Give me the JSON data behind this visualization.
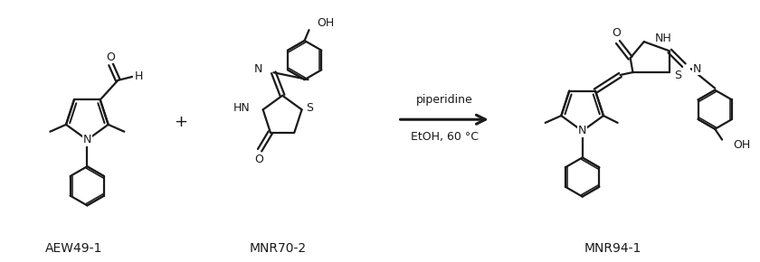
{
  "background_color": "#ffffff",
  "fig_width": 8.4,
  "fig_height": 2.9,
  "dpi": 100,
  "label_AEW": "AEW49-1",
  "label_MNR70": "MNR70-2",
  "label_MNR94": "MNR94-1",
  "reagent_line1": "piperidine",
  "reagent_line2": "EtOH, 60 °C",
  "plus_sign": "+",
  "line_color": "#1a1a1a",
  "text_color": "#1a1a1a",
  "bond_lw": 1.6,
  "font_size_label": 10,
  "font_size_atom": 9,
  "font_size_reagent": 9
}
